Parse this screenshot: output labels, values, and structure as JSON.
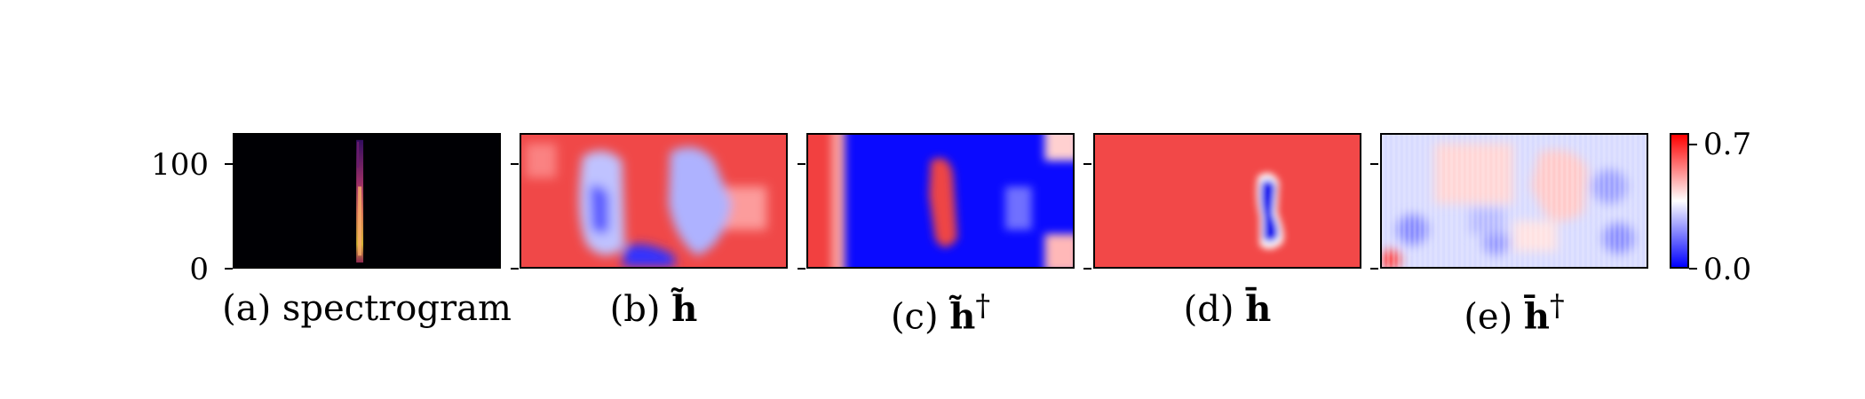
{
  "figure": {
    "panels": [
      {
        "id": "a",
        "caption_prefix": "(a)",
        "caption_main": "spectrogram",
        "caption_sup": "",
        "colormap": "inferno"
      },
      {
        "id": "b",
        "caption_prefix": "(b)",
        "caption_main": "h̃",
        "caption_sup": "",
        "colormap": "bwr"
      },
      {
        "id": "c",
        "caption_prefix": "(c)",
        "caption_main": "h̃",
        "caption_sup": "†",
        "colormap": "bwr"
      },
      {
        "id": "d",
        "caption_prefix": "(d)",
        "caption_main": "h̄",
        "caption_sup": "",
        "colormap": "bwr"
      },
      {
        "id": "e",
        "caption_prefix": "(e)",
        "caption_main": "h̄",
        "caption_sup": "†",
        "colormap": "bwr"
      }
    ],
    "y_axis": {
      "ticks": [
        "100",
        "0"
      ]
    },
    "colorbar": {
      "max_label": "0.7",
      "min_label": "0.0",
      "colors": {
        "high": "#ff0000",
        "mid": "#ffffff",
        "low": "#0000ff"
      }
    }
  }
}
